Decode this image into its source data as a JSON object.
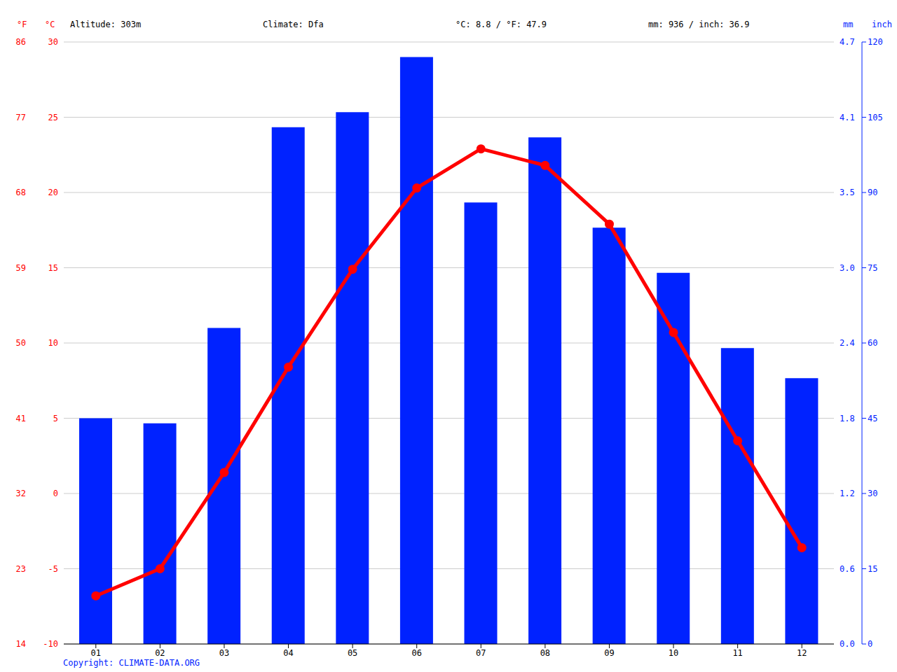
{
  "chart_data": {
    "type": "bar",
    "categories": [
      "01",
      "02",
      "03",
      "04",
      "05",
      "06",
      "07",
      "08",
      "09",
      "10",
      "11",
      "12"
    ],
    "series": [
      {
        "type": "bar",
        "color": "#0022ff",
        "axis": "y2",
        "values": [
          45,
          44,
          63,
          103,
          106,
          117,
          88,
          101,
          83,
          74,
          59,
          53
        ]
      },
      {
        "type": "line",
        "color": "#ff0000",
        "marker": "circle",
        "axis": "y",
        "values": [
          -6.8,
          -5.0,
          1.4,
          8.4,
          14.9,
          20.3,
          22.9,
          21.8,
          17.9,
          10.7,
          3.5,
          -3.6
        ]
      }
    ],
    "ylabel": "°C",
    "ylim": [
      -10,
      30
    ],
    "yticks": [
      -10,
      -5,
      0,
      5,
      10,
      15,
      20,
      25,
      30
    ],
    "y2label": "mm",
    "y2lim": [
      0,
      120
    ],
    "y2ticks": [
      0,
      15,
      30,
      45,
      60,
      75,
      90,
      105,
      120
    ],
    "y3label": "°F",
    "y3lim": [
      14,
      86
    ],
    "y3ticks": [
      14,
      23,
      32,
      41,
      50,
      59,
      68,
      77,
      86
    ],
    "y4label": "inch",
    "y4lim": [
      0,
      4.72
    ],
    "y4ticks": [
      {
        "value": 0,
        "label": "0.0"
      },
      {
        "value": 0.59,
        "label": "0.6"
      },
      {
        "value": 1.18,
        "label": "1.2"
      },
      {
        "value": 1.77,
        "label": "1.8"
      },
      {
        "value": 2.36,
        "label": "2.4"
      },
      {
        "value": 2.95,
        "label": "3.0"
      },
      {
        "value": 3.54,
        "label": "3.5"
      },
      {
        "value": 4.13,
        "label": "4.1"
      },
      {
        "value": 4.72,
        "label": "4.7"
      }
    ],
    "grid": true,
    "annotations": [
      "Altitude: 303m",
      "Climate: Dfa",
      "°C: 8.8 / °F: 47.9",
      "mm: 936 / inch: 36.9",
      "Copyright: CLIMATE-DATA.ORG"
    ]
  }
}
